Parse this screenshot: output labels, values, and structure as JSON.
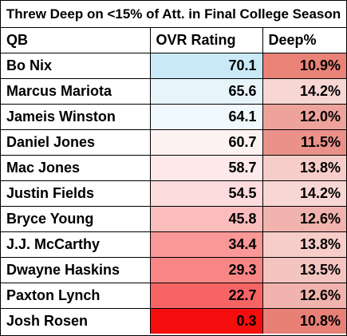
{
  "title": "Threw Deep on <15% of Att. in Final College Season",
  "headers": {
    "qb": "QB",
    "ovr": "OVR Rating",
    "deep": "Deep%"
  },
  "rows": [
    {
      "qb": "Bo Nix",
      "ovr": "70.1",
      "deep": "10.9%",
      "ovr_color": "#c9e9f6",
      "deep_color": "#e98378"
    },
    {
      "qb": "Marcus Mariota",
      "ovr": "65.6",
      "deep": "14.2%",
      "ovr_color": "#e7f5fb",
      "deep_color": "#f8d6d3"
    },
    {
      "qb": "Jameis Winston",
      "ovr": "64.1",
      "deep": "12.0%",
      "ovr_color": "#eff8fc",
      "deep_color": "#eda39b"
    },
    {
      "qb": "Daniel Jones",
      "ovr": "60.7",
      "deep": "11.5%",
      "ovr_color": "#fdf2f2",
      "deep_color": "#ea918a"
    },
    {
      "qb": "Mac Jones",
      "ovr": "58.7",
      "deep": "13.8%",
      "ovr_color": "#fde9e9",
      "deep_color": "#f6cdc9"
    },
    {
      "qb": "Justin Fields",
      "ovr": "54.5",
      "deep": "14.2%",
      "ovr_color": "#fcdcdc",
      "deep_color": "#f8d6d3"
    },
    {
      "qb": "Bryce Young",
      "ovr": "45.8",
      "deep": "12.6%",
      "ovr_color": "#fbbcbc",
      "deep_color": "#f0b3ad"
    },
    {
      "qb": "J.J. McCarthy",
      "ovr": "34.4",
      "deep": "13.8%",
      "ovr_color": "#fa9797",
      "deep_color": "#f6cdc9"
    },
    {
      "qb": "Dwayne Haskins",
      "ovr": "29.3",
      "deep": "13.5%",
      "ovr_color": "#f98686",
      "deep_color": "#f4c5c0"
    },
    {
      "qb": "Paxton Lynch",
      "ovr": "22.7",
      "deep": "12.6%",
      "ovr_color": "#f76464",
      "deep_color": "#f0b3ad"
    },
    {
      "qb": "Josh Rosen",
      "ovr": "0.3",
      "deep": "10.8%",
      "ovr_color": "#f40e0e",
      "deep_color": "#e88076"
    }
  ]
}
